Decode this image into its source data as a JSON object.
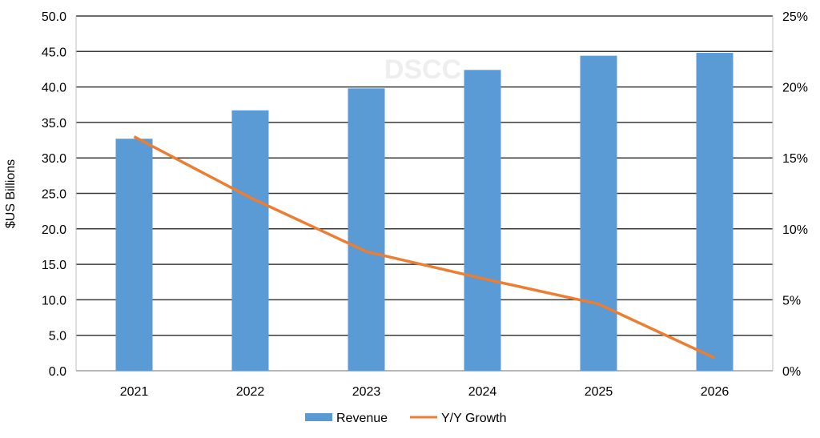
{
  "chart_data": {
    "type": "bar",
    "title": "",
    "watermark": "DSCC",
    "categories": [
      "2021",
      "2022",
      "2023",
      "2024",
      "2025",
      "2026"
    ],
    "series": [
      {
        "name": "Revenue",
        "type": "bar",
        "axis": "left",
        "color": "#5b9bd5",
        "values": [
          32.7,
          36.7,
          39.8,
          42.4,
          44.4,
          44.8
        ]
      },
      {
        "name": "Y/Y Growth",
        "type": "line",
        "axis": "right",
        "color": "#ed7d31",
        "values": [
          16.5,
          12.2,
          8.4,
          6.5,
          4.7,
          0.9
        ]
      }
    ],
    "ylabel": "$US Billions",
    "ylim": [
      0,
      50
    ],
    "yticks": [
      "0.0",
      "5.0",
      "10.0",
      "15.0",
      "20.0",
      "25.0",
      "30.0",
      "35.0",
      "40.0",
      "45.0",
      "50.0"
    ],
    "y2lim": [
      0,
      25
    ],
    "y2ticks": [
      "0%",
      "5%",
      "10%",
      "15%",
      "20%",
      "25%"
    ],
    "grid": true,
    "legend": "bottom"
  }
}
